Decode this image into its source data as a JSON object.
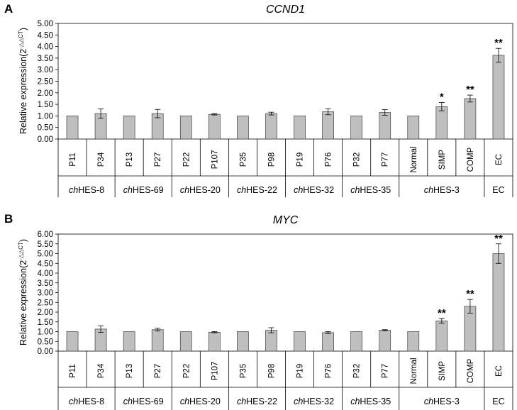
{
  "panels": [
    {
      "label": "A",
      "chart_data": {
        "type": "bar",
        "title": "CCND1",
        "ylabel_main": "Relative expression(2",
        "ylabel_sup": "-△△CT",
        "ylabel_tail": ")",
        "ylim": [
          0,
          5
        ],
        "yticks": [
          "0.00",
          "0.50",
          "1.00",
          "1.50",
          "2.00",
          "2.50",
          "3.00",
          "3.50",
          "4.00",
          "4.50",
          "5.00"
        ],
        "categories": [
          "P11",
          "P34",
          "P13",
          "P27",
          "P22",
          "P107",
          "P35",
          "P98",
          "P19",
          "P76",
          "P32",
          "P77",
          "Normal",
          "SIMP",
          "COMP",
          "EC"
        ],
        "values": [
          1.0,
          1.1,
          1.0,
          1.1,
          1.0,
          1.07,
          1.0,
          1.1,
          1.0,
          1.18,
          1.0,
          1.15,
          1.0,
          1.4,
          1.75,
          3.62
        ],
        "errors": [
          0,
          0.2,
          0,
          0.18,
          0,
          0.03,
          0,
          0.06,
          0,
          0.13,
          0,
          0.12,
          0,
          0.18,
          0.15,
          0.3
        ],
        "significance": [
          "",
          "",
          "",
          "",
          "",
          "",
          "",
          "",
          "",
          "",
          "",
          "",
          "",
          "*",
          "**",
          "**"
        ],
        "groups": [
          {
            "prefix": "ch",
            "suffix": "HES-8",
            "span": 2
          },
          {
            "prefix": "ch",
            "suffix": "HES-69",
            "span": 2
          },
          {
            "prefix": "ch",
            "suffix": "HES-20",
            "span": 2
          },
          {
            "prefix": "ch",
            "suffix": "HES-22",
            "span": 2
          },
          {
            "prefix": "ch",
            "suffix": "HES-32",
            "span": 2
          },
          {
            "prefix": "ch",
            "suffix": "HES-35",
            "span": 2
          },
          {
            "prefix": "ch",
            "suffix": "HES-3",
            "span": 3
          },
          {
            "prefix": "",
            "suffix": "EC",
            "span": 1
          }
        ]
      }
    },
    {
      "label": "B",
      "chart_data": {
        "type": "bar",
        "title": "MYC",
        "ylabel_main": "Relative expression(2",
        "ylabel_sup": "-△△CT",
        "ylabel_tail": ")",
        "ylim": [
          0,
          6
        ],
        "yticks": [
          "0.00",
          "0.50",
          "1.00",
          "1.50",
          "2.00",
          "2.50",
          "3.00",
          "3.50",
          "4.00",
          "4.50",
          "5.00",
          "5.50",
          "6.00"
        ],
        "categories": [
          "P11",
          "P34",
          "P13",
          "P27",
          "P22",
          "P107",
          "P35",
          "P98",
          "P19",
          "P76",
          "P32",
          "P77",
          "Normal",
          "SIMP",
          "COMP",
          "EC"
        ],
        "values": [
          1.0,
          1.13,
          1.0,
          1.1,
          1.0,
          0.97,
          1.0,
          1.07,
          1.0,
          0.95,
          1.0,
          1.07,
          1.0,
          1.55,
          2.3,
          5.0
        ],
        "errors": [
          0,
          0.17,
          0,
          0.07,
          0,
          0.03,
          0,
          0.13,
          0,
          0.05,
          0,
          0.03,
          0,
          0.12,
          0.35,
          0.5
        ],
        "significance": [
          "",
          "",
          "",
          "",
          "",
          "",
          "",
          "",
          "",
          "",
          "",
          "",
          "",
          "**",
          "**",
          "**"
        ],
        "groups": [
          {
            "prefix": "ch",
            "suffix": "HES-8",
            "span": 2
          },
          {
            "prefix": "ch",
            "suffix": "HES-69",
            "span": 2
          },
          {
            "prefix": "ch",
            "suffix": "HES-20",
            "span": 2
          },
          {
            "prefix": "ch",
            "suffix": "HES-22",
            "span": 2
          },
          {
            "prefix": "ch",
            "suffix": "HES-32",
            "span": 2
          },
          {
            "prefix": "ch",
            "suffix": "HES-35",
            "span": 2
          },
          {
            "prefix": "ch",
            "suffix": "HES-3",
            "span": 3
          },
          {
            "prefix": "",
            "suffix": "EC",
            "span": 1
          }
        ]
      }
    }
  ],
  "style": {
    "bar_fill": "#bfbfbf",
    "bar_stroke": "#404040",
    "axis_color": "#000000"
  }
}
